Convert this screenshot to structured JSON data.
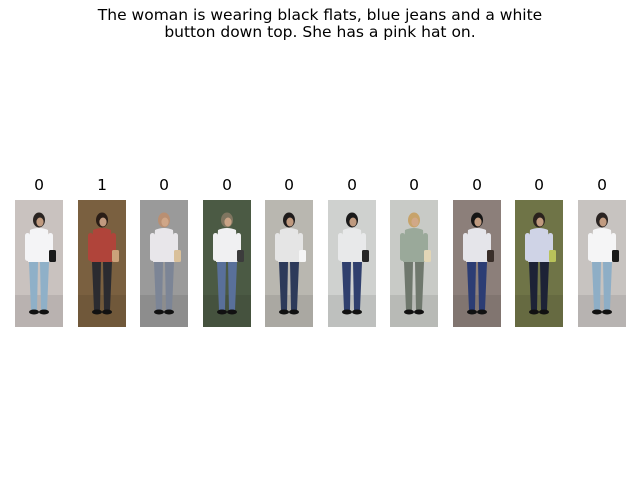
{
  "caption": {
    "line1": "The woman is wearing black flats, blue jeans and a white",
    "line2": "button down top.  She has a pink hat on."
  },
  "gallery": {
    "items": [
      {
        "label": "0",
        "scene": "outdoor pavement, woman in white top and light jeans with black handbag",
        "bg": "#c9c2bf",
        "top": "#f4f4f6",
        "bottom": "#8fb0c8",
        "head": "#2a2422",
        "accent": "#1a1a1a"
      },
      {
        "label": "1",
        "scene": "indoor, woman in floral top and dark trousers",
        "bg": "#7a6040",
        "top": "#b0443a",
        "bottom": "#2b2b30",
        "head": "#2a1d16",
        "accent": "#caa27a"
      },
      {
        "label": "0",
        "scene": "man in white shirt and grey trousers",
        "bg": "#9a9a9a",
        "top": "#e8e6ea",
        "bottom": "#7c8596",
        "head": "#b98f72",
        "accent": "#d9c09a"
      },
      {
        "label": "0",
        "scene": "man in white shirt and blue jeans wearing a hat",
        "bg": "#4b5a44",
        "top": "#f0f0f2",
        "bottom": "#59709a",
        "head": "#7f7560",
        "accent": "#3c3c3c"
      },
      {
        "label": "0",
        "scene": "woman in grey top and dark jeans carrying a shopping bag",
        "bg": "#b9b7b0",
        "top": "#e5e5e5",
        "bottom": "#2d3a5a",
        "head": "#1e1b1b",
        "accent": "#f5f5f5"
      },
      {
        "label": "0",
        "scene": "woman in grey top and blue jeans with black backpack",
        "bg": "#cfd1cf",
        "top": "#e8e9ea",
        "bottom": "#30406e",
        "head": "#1a1a1a",
        "accent": "#262626"
      },
      {
        "label": "0",
        "scene": "worker in green jacket wearing straw hat",
        "bg": "#c8cac6",
        "top": "#9aa99a",
        "bottom": "#6f786d",
        "head": "#c7a36a",
        "accent": "#e2d6b6"
      },
      {
        "label": "0",
        "scene": "woman with black hijab and backpack",
        "bg": "#8c7f7a",
        "top": "#e5e5ea",
        "bottom": "#2c3d74",
        "head": "#151515",
        "accent": "#3a2f2a"
      },
      {
        "label": "0",
        "scene": "woman in light blue top and dark jeans",
        "bg": "#6f7447",
        "top": "#cfd3e6",
        "bottom": "#1d2236",
        "head": "#2a221d",
        "accent": "#b9c35a"
      },
      {
        "label": "0",
        "scene": "woman in white top and light jeans with handbag",
        "bg": "#c7c3c0",
        "top": "#f5f5f6",
        "bottom": "#8eaec6",
        "head": "#2a2422",
        "accent": "#1a1a1a"
      }
    ]
  }
}
